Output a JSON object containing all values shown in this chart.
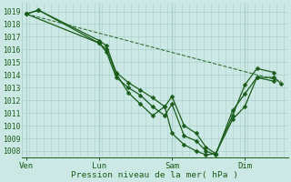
{
  "bg_color": "#cce8e4",
  "grid_color": "#aad0cc",
  "line_color": "#1a5c1a",
  "marker_color": "#1a5c1a",
  "xlabel": "Pression niveau de la mer( hPa )",
  "xlabel_color": "#1a5c1a",
  "tick_color": "#1a5c1a",
  "ylim": [
    1007.5,
    1019.7
  ],
  "yticks": [
    1008,
    1009,
    1010,
    1011,
    1012,
    1013,
    1014,
    1015,
    1016,
    1017,
    1018,
    1019
  ],
  "xtick_labels": [
    "Ven",
    "Lun",
    "Sam",
    "Dim"
  ],
  "xtick_positions": [
    0.0,
    3.0,
    6.0,
    9.0
  ],
  "xmin": -0.2,
  "xmax": 10.8,
  "trend_x": [
    0.0,
    10.5
  ],
  "trend_y": [
    1018.8,
    1013.5
  ],
  "series1_x": [
    0.0,
    0.5,
    3.0,
    3.3,
    3.7,
    4.2,
    4.7,
    5.2,
    5.7,
    6.0,
    6.5,
    7.0,
    7.4,
    7.8,
    8.5,
    9.0,
    9.5,
    10.2
  ],
  "series1_y": [
    1018.8,
    1019.1,
    1016.7,
    1016.3,
    1014.2,
    1013.4,
    1012.8,
    1012.2,
    1011.5,
    1012.3,
    1010.0,
    1009.4,
    1008.3,
    1007.8,
    1010.8,
    1013.2,
    1014.5,
    1014.2
  ],
  "series2_x": [
    0.0,
    0.5,
    3.0,
    3.3,
    3.7,
    4.2,
    4.7,
    5.2,
    5.7,
    6.0,
    6.5,
    7.0,
    7.4,
    7.8,
    8.5,
    9.0,
    9.5,
    10.2
  ],
  "series2_y": [
    1018.8,
    1019.1,
    1016.5,
    1015.8,
    1013.8,
    1013.0,
    1012.4,
    1011.5,
    1010.8,
    1011.7,
    1009.2,
    1008.8,
    1008.0,
    1007.7,
    1011.2,
    1012.5,
    1013.8,
    1013.5
  ],
  "series3_x": [
    0.0,
    3.0,
    3.3,
    3.7,
    4.2,
    4.7,
    5.2,
    5.7,
    6.0,
    6.5,
    7.0,
    7.4,
    7.8,
    8.5,
    9.0,
    9.5,
    10.2,
    10.5
  ],
  "series3_y": [
    1018.8,
    1016.5,
    1016.0,
    1014.1,
    1012.6,
    1011.7,
    1010.8,
    1011.5,
    1009.4,
    1008.5,
    1008.0,
    1007.7,
    1007.8,
    1010.5,
    1011.5,
    1013.8,
    1013.8,
    1013.3
  ]
}
